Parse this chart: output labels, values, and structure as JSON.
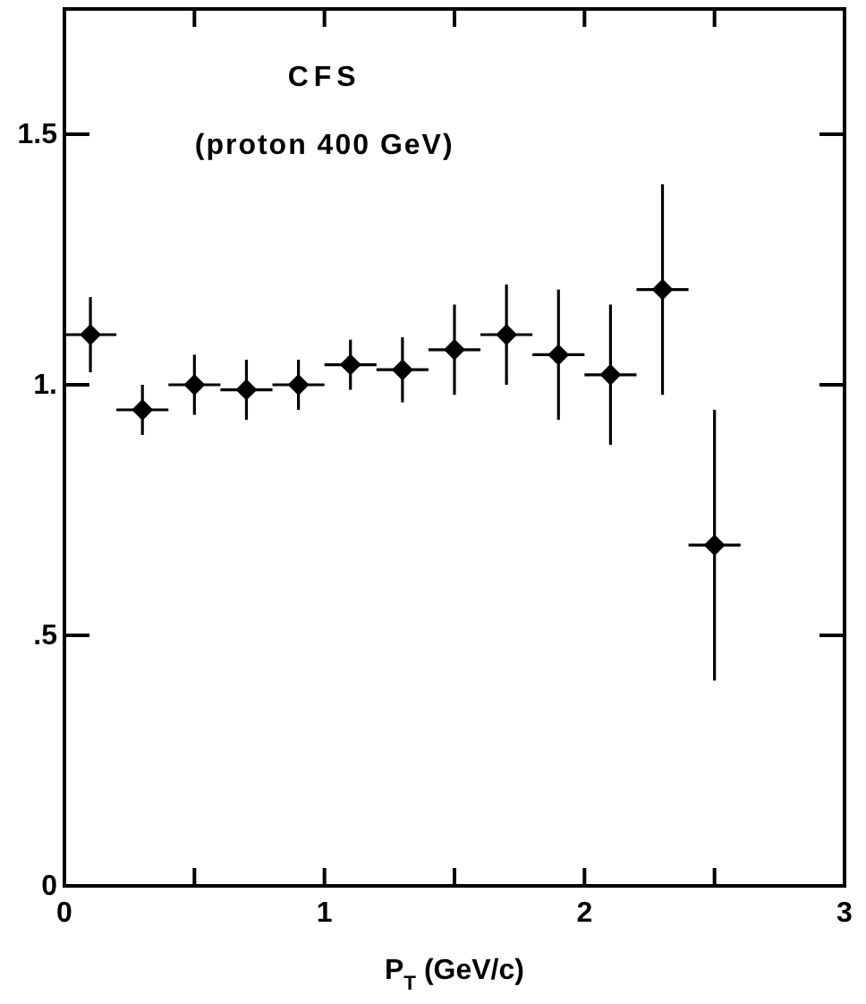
{
  "chart_data": {
    "type": "scatter",
    "title": "CFS",
    "subtitle": "(proton 400 GeV)",
    "xlabel": "P$_{T}$ (GeV/c)",
    "x": [
      0.1,
      0.3,
      0.5,
      0.7,
      0.9,
      1.1,
      1.3,
      1.5,
      1.7,
      1.9,
      2.1,
      2.3,
      2.5
    ],
    "values": [
      1.1,
      0.95,
      1.0,
      0.99,
      1.0,
      1.04,
      1.03,
      1.07,
      1.1,
      1.06,
      1.02,
      1.19,
      0.68
    ],
    "errors": [
      0.075,
      0.05,
      0.06,
      0.06,
      0.05,
      0.05,
      0.065,
      0.09,
      0.1,
      0.13,
      0.14,
      0.21,
      0.27
    ],
    "xerrors": [
      0.1,
      0.1,
      0.1,
      0.1,
      0.1,
      0.1,
      0.1,
      0.1,
      0.1,
      0.1,
      0.1,
      0.1,
      0.1
    ],
    "color": "#000000",
    "marker": "diamond",
    "xlim": [
      0,
      3
    ],
    "ylim": [
      0,
      1.75
    ],
    "xticks": [
      0,
      {
        "value": 0.5,
        "label": null
      },
      1,
      {
        "value": 1.5,
        "label": null
      },
      2,
      {
        "value": 2.5,
        "label": null
      },
      3
    ],
    "yticks": [
      0,
      {
        "value": 0.5,
        "label": ".5"
      },
      {
        "value": 1,
        "label": "1."
      },
      1.5
    ],
    "grid": false
  }
}
